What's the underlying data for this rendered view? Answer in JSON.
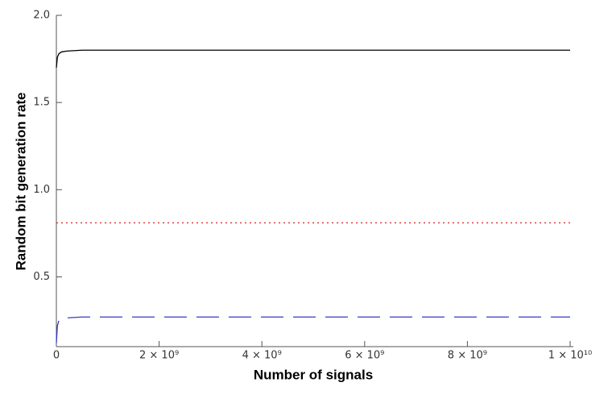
{
  "chart_data": {
    "type": "line",
    "xlabel": "Number of signals",
    "ylabel": "Random bit generation rate",
    "x": [
      0,
      20000000,
      50000000,
      100000000,
      200000000,
      500000000,
      1000000000,
      2000000000,
      4000000000,
      6000000000,
      8000000000,
      10000000000
    ],
    "series": [
      {
        "color": "#000000",
        "dash": "solid",
        "values": [
          1.7,
          1.76,
          1.78,
          1.79,
          1.795,
          1.8,
          1.8,
          1.8,
          1.8,
          1.8,
          1.8,
          1.8
        ]
      },
      {
        "color": "#e03030",
        "dash": "dotted",
        "values": [
          0.81,
          0.81,
          0.81,
          0.81,
          0.81,
          0.81,
          0.81,
          0.81,
          0.81,
          0.81,
          0.81,
          0.81
        ]
      },
      {
        "color": "#3a3ac8",
        "dash": "dashed",
        "values": [
          0.12,
          0.22,
          0.25,
          0.26,
          0.265,
          0.27,
          0.27,
          0.27,
          0.27,
          0.27,
          0.27,
          0.27
        ]
      }
    ],
    "xlim": [
      0,
      10000000000
    ],
    "ylim": [
      0.1,
      2.0
    ],
    "xticks": [
      0,
      {
        "value": 2000000000,
        "label": "2 × 10⁹"
      },
      {
        "value": 4000000000,
        "label": "4 × 10⁹"
      },
      {
        "value": 6000000000,
        "label": "6 × 10⁹"
      },
      {
        "value": 8000000000,
        "label": "8 × 10⁹"
      },
      {
        "value": 10000000000,
        "label": "1 × 10¹⁰"
      }
    ],
    "yticks": [
      0.5,
      {
        "value": 1.0,
        "label": "1.0"
      },
      1.5,
      {
        "value": 2.0,
        "label": "2.0"
      }
    ],
    "grid": false
  }
}
